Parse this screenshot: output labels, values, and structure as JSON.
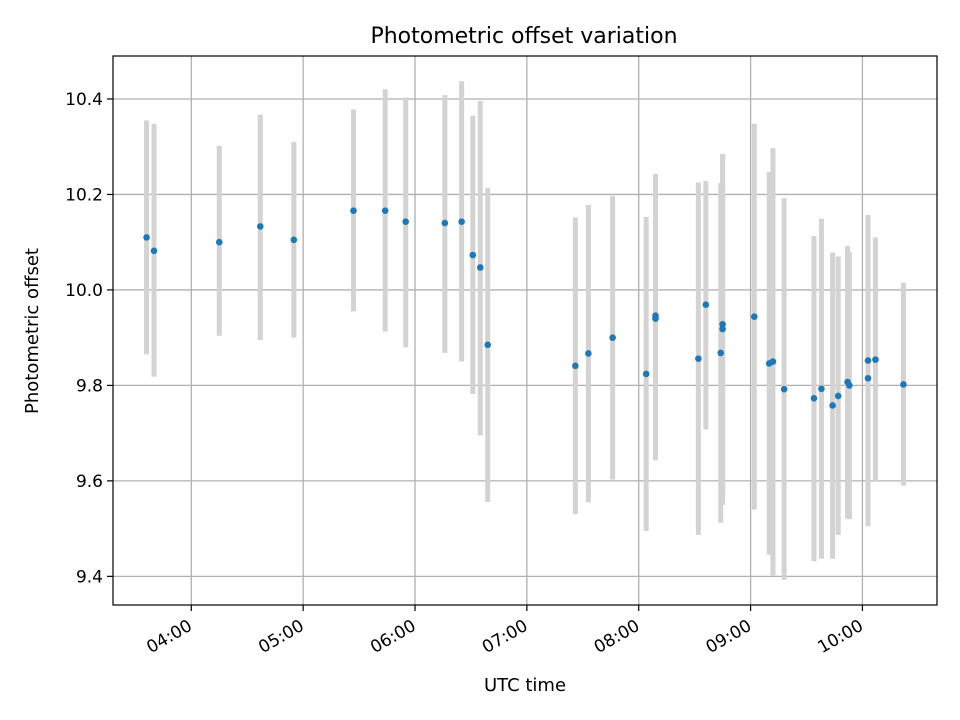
{
  "chart_data": {
    "type": "scatter",
    "title": "Photometric offset variation",
    "xlabel": "UTC time",
    "ylabel": "Photometric offset",
    "xlim": [
      "03:18",
      "10:40"
    ],
    "ylim": [
      9.34,
      10.49
    ],
    "grid": true,
    "x_ticks": [
      "04:00",
      "05:00",
      "06:00",
      "07:00",
      "08:00",
      "09:00",
      "10:00"
    ],
    "y_ticks": [
      "9.4",
      "9.6",
      "9.8",
      "10.0",
      "10.2",
      "10.4"
    ],
    "y_tick_values": [
      9.4,
      9.6,
      9.8,
      10.0,
      10.2,
      10.4
    ],
    "colors": {
      "point": "#1f77b4",
      "errorbar": "#d3d3d3",
      "grid": "#b0b0b0"
    },
    "points": [
      {
        "t": "03:36",
        "y": 10.11,
        "lo": 9.865,
        "hi": 10.355
      },
      {
        "t": "03:40",
        "y": 10.082,
        "lo": 9.818,
        "hi": 10.348
      },
      {
        "t": "04:15",
        "y": 10.1,
        "lo": 9.904,
        "hi": 10.302
      },
      {
        "t": "04:37",
        "y": 10.133,
        "lo": 9.895,
        "hi": 10.367
      },
      {
        "t": "04:55",
        "y": 10.105,
        "lo": 9.9,
        "hi": 10.31
      },
      {
        "t": "05:27",
        "y": 10.166,
        "lo": 9.955,
        "hi": 10.378
      },
      {
        "t": "05:44",
        "y": 10.166,
        "lo": 9.913,
        "hi": 10.42
      },
      {
        "t": "05:55",
        "y": 10.143,
        "lo": 9.88,
        "hi": 10.403
      },
      {
        "t": "06:16",
        "y": 10.14,
        "lo": 9.868,
        "hi": 10.408
      },
      {
        "t": "06:25",
        "y": 10.143,
        "lo": 9.85,
        "hi": 10.437
      },
      {
        "t": "06:31",
        "y": 10.073,
        "lo": 9.782,
        "hi": 10.365
      },
      {
        "t": "06:35",
        "y": 10.047,
        "lo": 9.695,
        "hi": 10.396
      },
      {
        "t": "06:39",
        "y": 9.885,
        "lo": 9.556,
        "hi": 10.214
      },
      {
        "t": "07:26",
        "y": 9.841,
        "lo": 9.53,
        "hi": 10.152
      },
      {
        "t": "07:33",
        "y": 9.867,
        "lo": 9.555,
        "hi": 10.178
      },
      {
        "t": "07:46",
        "y": 9.9,
        "lo": 9.603,
        "hi": 10.197
      },
      {
        "t": "08:04",
        "y": 9.824,
        "lo": 9.495,
        "hi": 10.153
      },
      {
        "t": "08:09",
        "y": 9.94,
        "lo": 9.643,
        "hi": 10.237
      },
      {
        "t": "08:09",
        "y": 9.946,
        "lo": 9.65,
        "hi": 10.243
      },
      {
        "t": "08:32",
        "y": 9.856,
        "lo": 9.487,
        "hi": 10.225
      },
      {
        "t": "08:36",
        "y": 9.969,
        "lo": 9.708,
        "hi": 10.228
      },
      {
        "t": "08:44",
        "y": 9.868,
        "lo": 9.512,
        "hi": 10.224
      },
      {
        "t": "08:45",
        "y": 9.918,
        "lo": 9.55,
        "hi": 10.284
      },
      {
        "t": "08:45",
        "y": 9.928,
        "lo": 9.57,
        "hi": 10.285
      },
      {
        "t": "09:02",
        "y": 9.944,
        "lo": 9.54,
        "hi": 10.348
      },
      {
        "t": "09:10",
        "y": 9.846,
        "lo": 9.445,
        "hi": 10.247
      },
      {
        "t": "09:12",
        "y": 9.85,
        "lo": 9.402,
        "hi": 10.297
      },
      {
        "t": "09:18",
        "y": 9.792,
        "lo": 9.393,
        "hi": 10.192
      },
      {
        "t": "09:34",
        "y": 9.773,
        "lo": 9.432,
        "hi": 10.113
      },
      {
        "t": "09:38",
        "y": 9.793,
        "lo": 9.437,
        "hi": 10.149
      },
      {
        "t": "09:44",
        "y": 9.758,
        "lo": 9.437,
        "hi": 10.078
      },
      {
        "t": "09:47",
        "y": 9.778,
        "lo": 9.487,
        "hi": 10.07
      },
      {
        "t": "09:52",
        "y": 9.807,
        "lo": 9.521,
        "hi": 10.092
      },
      {
        "t": "09:53",
        "y": 9.8,
        "lo": 9.52,
        "hi": 10.08
      },
      {
        "t": "10:03",
        "y": 9.815,
        "lo": 9.505,
        "hi": 10.125
      },
      {
        "t": "10:03",
        "y": 9.852,
        "lo": 9.548,
        "hi": 10.157
      },
      {
        "t": "10:07",
        "y": 9.854,
        "lo": 9.598,
        "hi": 10.11
      },
      {
        "t": "10:22",
        "y": 9.802,
        "lo": 9.59,
        "hi": 10.015
      }
    ]
  }
}
